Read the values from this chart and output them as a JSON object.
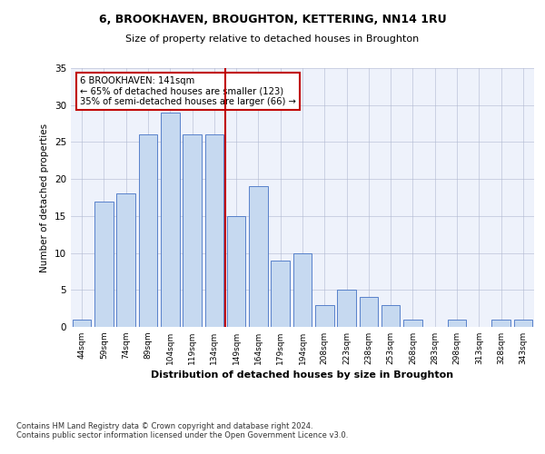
{
  "title1": "6, BROOKHAVEN, BROUGHTON, KETTERING, NN14 1RU",
  "title2": "Size of property relative to detached houses in Broughton",
  "xlabel": "Distribution of detached houses by size in Broughton",
  "ylabel": "Number of detached properties",
  "categories": [
    "44sqm",
    "59sqm",
    "74sqm",
    "89sqm",
    "104sqm",
    "119sqm",
    "134sqm",
    "149sqm",
    "164sqm",
    "179sqm",
    "194sqm",
    "208sqm",
    "223sqm",
    "238sqm",
    "253sqm",
    "268sqm",
    "283sqm",
    "298sqm",
    "313sqm",
    "328sqm",
    "343sqm"
  ],
  "values": [
    1,
    17,
    18,
    26,
    29,
    26,
    26,
    15,
    19,
    9,
    10,
    3,
    5,
    4,
    3,
    1,
    0,
    1,
    0,
    1,
    1
  ],
  "bar_color": "#c6d9f0",
  "bar_edge_color": "#4472c4",
  "vline_x": 6.5,
  "vline_color": "#c00000",
  "annotation_line1": "6 BROOKHAVEN: 141sqm",
  "annotation_line2": "← 65% of detached houses are smaller (123)",
  "annotation_line3": "35% of semi-detached houses are larger (66) →",
  "annotation_box_color": "#c00000",
  "ylim": [
    0,
    35
  ],
  "yticks": [
    0,
    5,
    10,
    15,
    20,
    25,
    30,
    35
  ],
  "footer": "Contains HM Land Registry data © Crown copyright and database right 2024.\nContains public sector information licensed under the Open Government Licence v3.0.",
  "bg_color": "#eef2fb",
  "grid_color": "#b0b8d0"
}
